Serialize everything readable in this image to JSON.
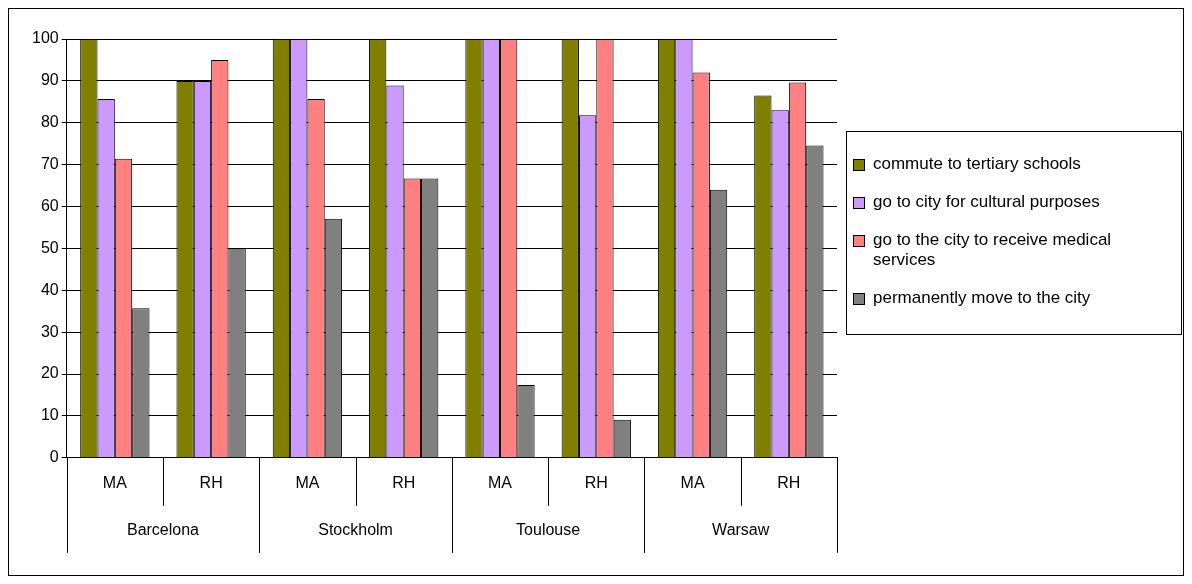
{
  "chart_data": {
    "type": "bar",
    "categories": [
      "MA",
      "RH",
      "MA",
      "RH",
      "MA",
      "RH",
      "MA",
      "RH"
    ],
    "annotations": [
      "Barcelona",
      "Stockholm",
      "Toulouse",
      "Warsaw"
    ],
    "series": [
      {
        "name": "commute to tertiary schools",
        "color": "#808000",
        "values": [
          100,
          90,
          100,
          100,
          100,
          100,
          100,
          86.5
        ]
      },
      {
        "name": "go to city for cultural purposes",
        "color": "#cc99ff",
        "values": [
          85.7,
          90,
          100,
          88.9,
          100,
          81.8,
          100,
          83
        ]
      },
      {
        "name": "go to the city to receive medical services",
        "color": "#ff8080",
        "values": [
          71.4,
          95,
          85.7,
          66.7,
          100,
          100,
          92,
          89.6
        ]
      },
      {
        "name": "permanently move to the city",
        "color": "#808080",
        "values": [
          35.7,
          50,
          57.1,
          66.7,
          17.4,
          9.1,
          64,
          74.6
        ]
      }
    ],
    "ylim": [
      0,
      100
    ],
    "yticks": [
      0,
      10,
      20,
      30,
      40,
      50,
      60,
      70,
      80,
      90,
      100
    ],
    "grid": "y",
    "legend": "right"
  }
}
